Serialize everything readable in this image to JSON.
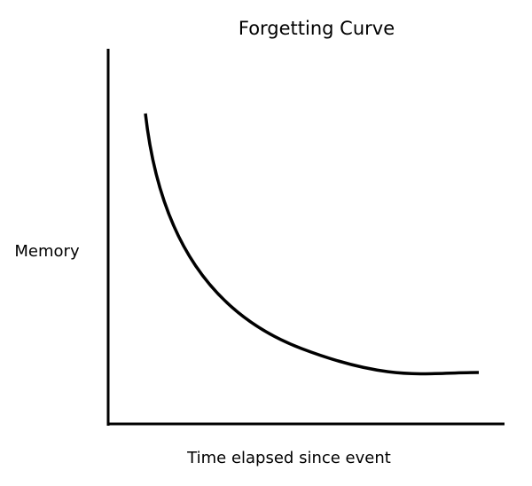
{
  "chart_data": {
    "type": "line",
    "title": "Forgetting Curve",
    "xlabel": "Time elapsed since event",
    "ylabel": "Memory"
  }
}
